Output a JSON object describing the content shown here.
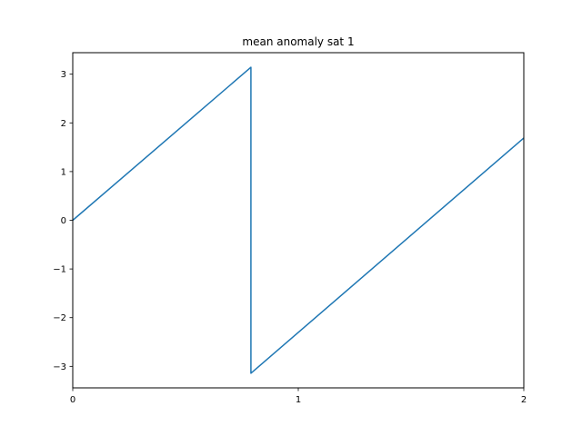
{
  "chart_data": {
    "type": "line",
    "title": "mean anomaly sat 1",
    "xlabel": "",
    "ylabel": "",
    "xlim": [
      0,
      2
    ],
    "ylim": [
      -3.4415,
      3.4415
    ],
    "grid": false,
    "x_ticks": [
      0,
      1,
      2
    ],
    "x_tick_labels": [
      "0",
      "1",
      "2"
    ],
    "y_ticks": [
      3,
      2,
      1,
      0,
      -1,
      -2,
      -3
    ],
    "y_tick_labels": [
      "3",
      "2",
      "1",
      "0",
      "−1",
      "−2",
      "−3"
    ],
    "series": [
      {
        "color": "#1f77b4",
        "x": [
          0,
          0.79,
          0.79,
          2
        ],
        "y": [
          0,
          3.14159,
          -3.14159,
          1.69
        ]
      }
    ]
  }
}
